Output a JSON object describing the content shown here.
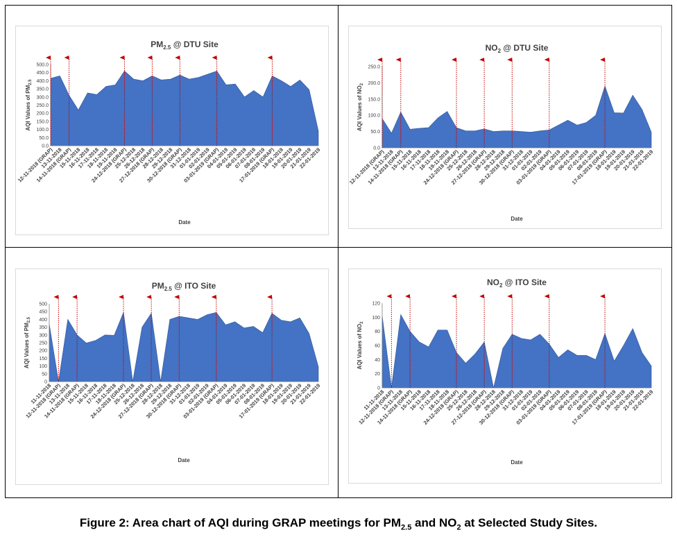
{
  "caption": {
    "prefix": "Figure 2: Area chart of AQI during GRAP meetings for PM",
    "sub1": "2.5",
    "middle": " and NO",
    "sub2": "2",
    "suffix": " at Selected Study Sites."
  },
  "chart_data": [
    {
      "type": "area",
      "title": "PM",
      "title_sub": "2.5",
      "title_rest": " @ DTU Site",
      "ylabel": "AQI  Values of PM",
      "ylabel_sub": "2.5",
      "xlabel": "Date",
      "ylim": [
        0,
        500
      ],
      "yticks": [
        "0.0",
        "50.0",
        "100.0",
        "150.0",
        "200.0",
        "250.0",
        "300.0",
        "350.0",
        "400.0",
        "450.0",
        "500.0"
      ],
      "fill_color": "#4472c4",
      "marker_color": "#c00000",
      "categories": [
        "12-11-2018 (GRAP)",
        "13-11-2018",
        "14-11-2018 (GRAP)",
        "15-11-2018",
        "16-11-2018",
        "17-11-2018",
        "18-11-2018",
        "19-11-2018",
        "24-12-2018 (GRAP)",
        "25-12-2018",
        "26-12-2018",
        "27-12-2018 (GRAP)",
        "28-12-2018",
        "29-12-2018",
        "30-12-2018 (GRAP)",
        "31-12-2018",
        "01-01-2019",
        "02-01-2019",
        "03-01-2019 (GRAP)",
        "04-01-2019",
        "05-01-2019",
        "06-01-2019",
        "07-01-2019",
        "08-01-2019",
        "17-01-2019 (GRAP)",
        "18-01-2019",
        "19-01-2019",
        "20-01-2019",
        "21-01-2019",
        "22-01-2019"
      ],
      "values": [
        415,
        430,
        310,
        220,
        325,
        315,
        365,
        375,
        460,
        410,
        400,
        430,
        405,
        410,
        435,
        410,
        420,
        440,
        460,
        375,
        380,
        300,
        340,
        300,
        430,
        400,
        365,
        405,
        345,
        90
      ],
      "grap_indices": [
        0,
        2,
        8,
        11,
        14,
        18,
        24
      ]
    },
    {
      "type": "area",
      "title": "NO",
      "title_sub": "2",
      "title_rest": " @ DTU Site",
      "ylabel": "AQI Values of NO",
      "ylabel_sub": "2",
      "xlabel": "Date",
      "ylim": [
        0,
        250
      ],
      "yticks": [
        "0.0",
        "50.0",
        "100.0",
        "150.0",
        "200.0",
        "250.0"
      ],
      "fill_color": "#4472c4",
      "marker_color": "#c00000",
      "categories": [
        "12-11-2018 (GRAP)",
        "13-11-2018",
        "14-11-2018 (GRAP)",
        "15-11-2018",
        "16-11-2018",
        "17-11-2018",
        "18-11-2018",
        "19-11-2018",
        "24-12-2018 (GRAP)",
        "25-12-2018",
        "26-12-2018",
        "27-12-2018 (GRAP)",
        "28-12-2018",
        "29-12-2018",
        "30-12-2018 (GRAP)",
        "31-12-2018",
        "01-01-2019",
        "02-01-2019",
        "03-01-2019 (GRAP)",
        "04-01-2019",
        "05-01-2019",
        "06-01-2019",
        "07-01-2019",
        "08-01-2019",
        "17-01-2019 (GRAP)",
        "18-01-2019",
        "19-01-2019",
        "20-01-2019",
        "21-01-2019",
        "22-01-2019"
      ],
      "values": [
        90,
        45,
        110,
        57,
        60,
        62,
        92,
        112,
        62,
        52,
        52,
        58,
        50,
        52,
        52,
        50,
        48,
        52,
        55,
        70,
        85,
        70,
        78,
        100,
        190,
        108,
        107,
        162,
        118,
        48
      ],
      "grap_indices": [
        0,
        2,
        8,
        11,
        14,
        18,
        24
      ]
    },
    {
      "type": "area",
      "title": "PM",
      "title_sub": "2.5",
      "title_rest": " @ ITO Site",
      "ylabel": "AQI Values of PM",
      "ylabel_sub": "2.5",
      "xlabel": "Date",
      "ylim": [
        0,
        500
      ],
      "yticks": [
        "0",
        "50",
        "100",
        "150",
        "200",
        "250",
        "300",
        "350",
        "400",
        "450",
        "500"
      ],
      "fill_color": "#4472c4",
      "marker_color": "#c00000",
      "categories": [
        "11-11-2018",
        "12-11-2018 (GRAP)",
        "13-11-2018",
        "14-11-2018 (GRAP)",
        "15-11-2018",
        "16-11-2018",
        "17-11-2018",
        "18-11-2018",
        "24-12-2018 (GRAP)",
        "25-12-2018",
        "26-12-2018",
        "27-12-2018 (GRAP)",
        "28-12-2018",
        "29-12-2018",
        "30-12-2018 (GRAP)",
        "31-12-2018",
        "01-01-2019",
        "02-01-2019",
        "03-01-2019 (GRAP)",
        "04-01-2019",
        "05-01-2019",
        "06-01-2019",
        "07-01-2019",
        "08-01-2019",
        "17-01-2019 (GRAP)",
        "18-01-2019",
        "19-01-2019",
        "20-01-2019",
        "21-01-2019",
        "22-01-2019"
      ],
      "values": [
        370,
        0,
        400,
        300,
        248,
        265,
        300,
        298,
        445,
        0,
        350,
        440,
        0,
        400,
        420,
        410,
        400,
        430,
        445,
        365,
        385,
        345,
        355,
        315,
        440,
        395,
        385,
        410,
        310,
        95
      ],
      "grap_indices": [
        1,
        3,
        8,
        11,
        14,
        18,
        24
      ]
    },
    {
      "type": "area",
      "title": "NO",
      "title_sub": "2",
      "title_rest": " @ ITO Site",
      "ylabel": "AQI Values of NO",
      "ylabel_sub": "2",
      "xlabel": "Date",
      "ylim": [
        0,
        120
      ],
      "yticks": [
        "0",
        "20",
        "40",
        "60",
        "80",
        "100",
        "120"
      ],
      "fill_color": "#4472c4",
      "marker_color": "#c00000",
      "categories": [
        "11-11-2018",
        "12-11-2018 (GRAP)",
        "13-11-2018",
        "14-11-2018 (GRAP)",
        "15-11-2018",
        "16-11-2018",
        "17-11-2018",
        "18-11-2018",
        "24-12-2018 (GRAP)",
        "25-12-2018",
        "26-12-2018",
        "27-12-2018 (GRAP)",
        "28-12-2018",
        "29-12-2018",
        "30-12-2018 (GRAP)",
        "31-12-2018",
        "01-01-2019",
        "02-01-2019",
        "03-01-2019 (GRAP)",
        "04-01-2019",
        "05-01-2019",
        "06-01-2019",
        "07-01-2019",
        "08-01-2019",
        "17-01-2019 (GRAP)",
        "18-01-2019",
        "19-01-2019",
        "20-01-2019",
        "21-01-2019",
        "22-01-2019"
      ],
      "values": [
        102,
        0,
        104,
        80,
        65,
        58,
        82,
        82,
        50,
        35,
        48,
        65,
        0,
        56,
        76,
        70,
        68,
        76,
        62,
        43,
        54,
        46,
        46,
        40,
        77,
        38,
        60,
        84,
        50,
        31
      ],
      "grap_indices": [
        1,
        3,
        8,
        11,
        14,
        18,
        24
      ]
    }
  ]
}
